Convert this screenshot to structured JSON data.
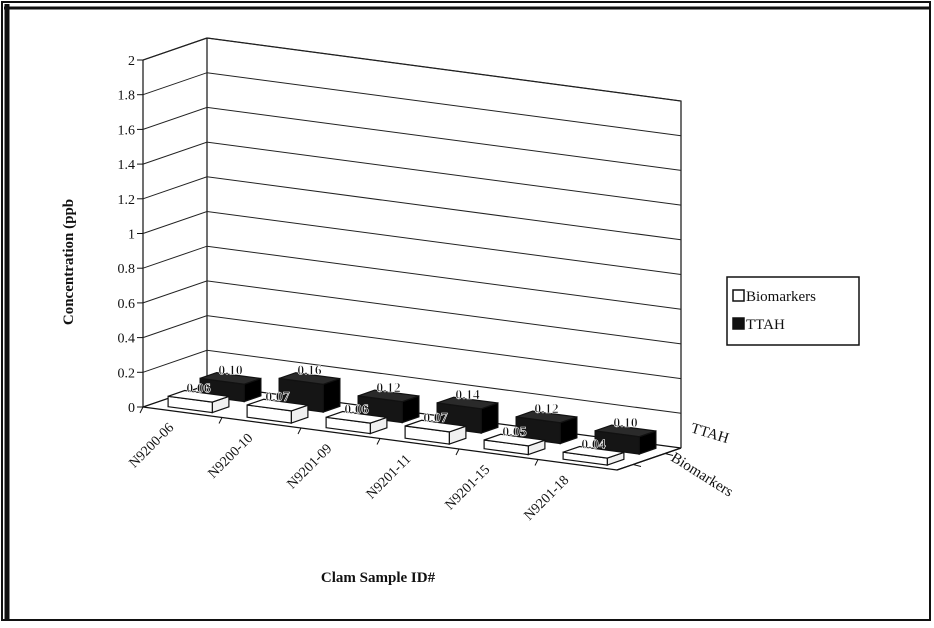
{
  "chart_data": {
    "type": "bar",
    "title": "",
    "xlabel": "Clam Sample ID#",
    "ylabel": "Concentration (ppb",
    "ylim": [
      0,
      2
    ],
    "y_ticks": [
      "0",
      "0.2",
      "0.4",
      "0.6",
      "0.8",
      "1",
      "1.2",
      "1.4",
      "1.6",
      "1.8",
      "2"
    ],
    "categories": [
      "N9200-06",
      "N9200-10",
      "N9201-09",
      "N9201-11",
      "N9201-15",
      "N9201-18"
    ],
    "depth_labels": [
      "TTAH",
      "Biomarkers"
    ],
    "series": [
      {
        "name": "Biomarkers",
        "values": [
          0.06,
          0.07,
          0.06,
          0.07,
          0.05,
          0.04
        ],
        "labels": [
          "0.06",
          "0.07",
          "0.06",
          "0.07",
          "0.05",
          "0.04"
        ],
        "color": "#ffffff"
      },
      {
        "name": "TTAH",
        "values": [
          0.1,
          0.16,
          0.12,
          0.14,
          0.12,
          0.1
        ],
        "labels": [
          "0.10",
          "0.16",
          "0.12",
          "0.14",
          "0.12",
          "0.10"
        ],
        "color": "#111111"
      }
    ],
    "legend": {
      "position": "right",
      "items": [
        "Biomarkers",
        "TTAH"
      ]
    },
    "grid": true,
    "projection": "3d"
  }
}
